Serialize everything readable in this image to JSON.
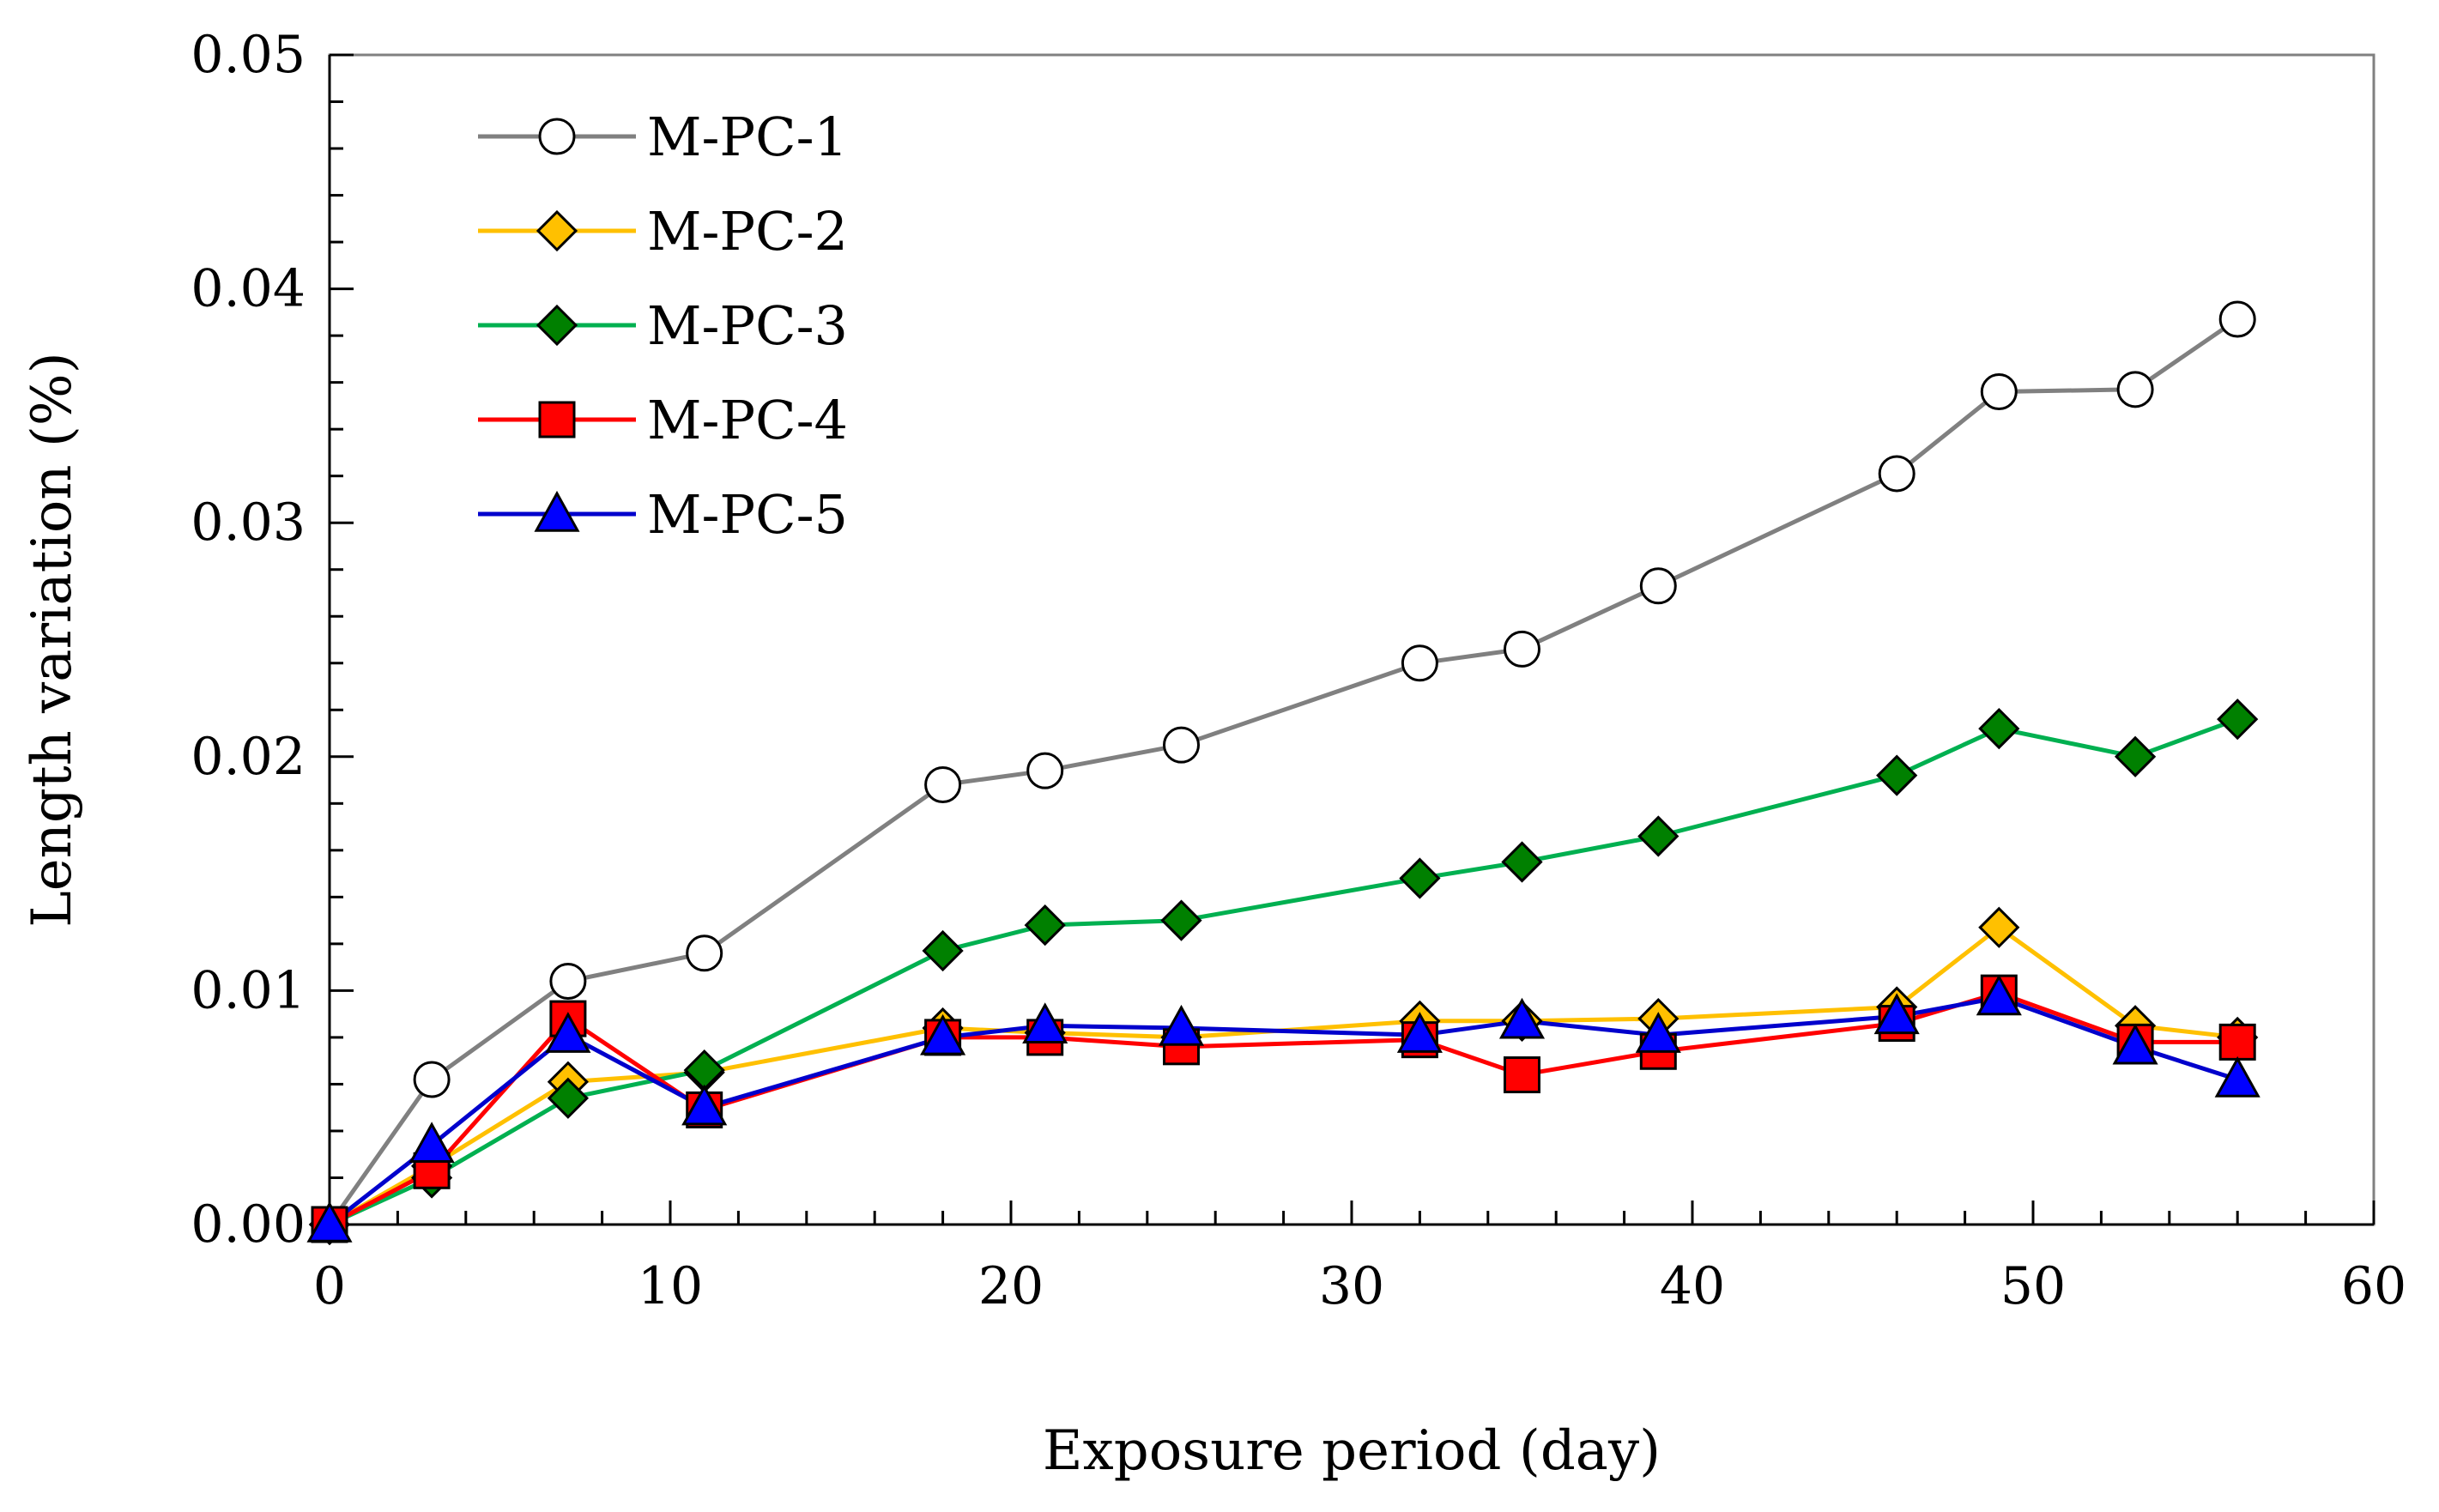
{
  "chart_data": {
    "type": "line",
    "title": "",
    "xlabel": "Exposure period (day)",
    "ylabel": "Length variation (%)",
    "xlim": [
      0,
      60
    ],
    "ylim": [
      0,
      0.05
    ],
    "x_ticks": [
      "0",
      "10",
      "20",
      "30",
      "40",
      "50",
      "60"
    ],
    "x_tick_values": [
      0,
      10,
      20,
      30,
      40,
      50,
      60
    ],
    "y_ticks": [
      "0.00",
      "0.01",
      "0.02",
      "0.03",
      "0.04",
      "0.05"
    ],
    "y_tick_values": [
      0,
      0.01,
      0.02,
      0.03,
      0.04,
      0.05
    ],
    "grid": false,
    "legend_position": "top-left",
    "x": [
      0,
      3,
      7,
      11,
      18,
      21,
      25,
      32,
      35,
      39,
      46,
      49,
      53,
      56
    ],
    "series": [
      {
        "name": "M-PC-1",
        "marker": "circle",
        "line_color": "#808080",
        "marker_fill": "#ffffff",
        "values": [
          0,
          0.0062,
          0.0104,
          0.0116,
          0.0188,
          0.0194,
          0.0205,
          0.024,
          0.0246,
          0.0273,
          0.0321,
          0.0356,
          0.0357,
          0.0387
        ]
      },
      {
        "name": "M-PC-2",
        "marker": "diamond",
        "line_color": "#FFC000",
        "marker_fill": "#FFC000",
        "values": [
          0,
          0.0025,
          0.0061,
          0.0065,
          0.0084,
          0.0082,
          0.008,
          0.0087,
          0.0087,
          0.0088,
          0.0093,
          0.0127,
          0.0085,
          0.008
        ]
      },
      {
        "name": "M-PC-3",
        "marker": "diamond",
        "line_color": "#00B050",
        "marker_fill": "#008000",
        "values": [
          0,
          0.002,
          0.0054,
          0.0066,
          0.0117,
          0.0128,
          0.013,
          0.0148,
          0.0155,
          0.0166,
          0.0192,
          0.0212,
          0.02,
          0.0216
        ]
      },
      {
        "name": "M-PC-4",
        "marker": "square",
        "line_color": "#FF0000",
        "marker_fill": "#FF0000",
        "values": [
          0,
          0.0023,
          0.0088,
          0.0049,
          0.008,
          0.008,
          0.0076,
          0.0079,
          0.0064,
          0.0074,
          0.0086,
          0.0099,
          0.0078,
          0.0078
        ]
      },
      {
        "name": "M-PC-5",
        "marker": "triangle",
        "line_color": "#0000CC",
        "marker_fill": "#0000FF",
        "values": [
          0,
          0.0034,
          0.0081,
          0.005,
          0.008,
          0.0085,
          0.0084,
          0.0081,
          0.0087,
          0.0081,
          0.0089,
          0.0097,
          0.0076,
          0.0062
        ]
      }
    ]
  }
}
